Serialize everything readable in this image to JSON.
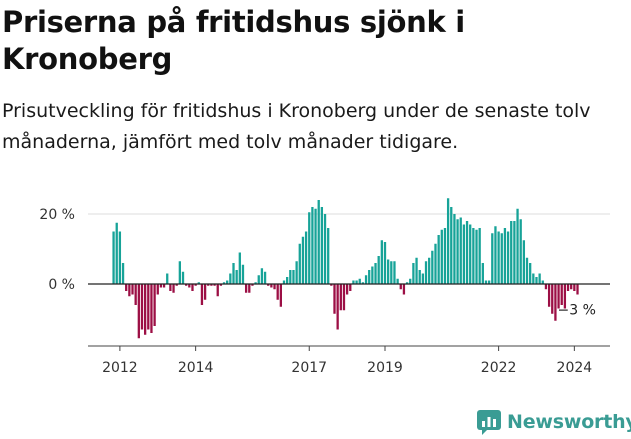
{
  "title": "Priserna på fritidshus sjönk i Kronoberg",
  "subtitle": "Prisutveckling för fritidshus i Kronoberg under de senaste tolv månaderna, jämfört med tolv månader tidigare.",
  "brand": "Newsworthy",
  "colors": {
    "positive": "#17a398",
    "negative": "#9c0f45",
    "grid": "#dddddd",
    "brand": "#3a9c94"
  },
  "chart_data": {
    "type": "bar",
    "start": "2011-11",
    "ylabel": "",
    "xlabel": "",
    "ylim": [
      -17,
      25
    ],
    "yticks": [
      {
        "value": 0,
        "label": "0 %"
      },
      {
        "value": 20,
        "label": "20 %"
      }
    ],
    "xticks": [
      {
        "label": "2012",
        "index": 2
      },
      {
        "label": "2014",
        "index": 26
      },
      {
        "label": "2017",
        "index": 62
      },
      {
        "label": "2019",
        "index": 86
      },
      {
        "label": "2022",
        "index": 122
      },
      {
        "label": "2024",
        "index": 146
      }
    ],
    "end_label": "−3 %",
    "values": [
      15,
      17.5,
      15,
      6,
      -2,
      -3.5,
      -3,
      -6,
      -15.5,
      -13,
      -14.5,
      -13,
      -14,
      -12,
      -3,
      -1,
      -1,
      3,
      -2,
      -2.5,
      -0.5,
      6.5,
      3.5,
      -0.5,
      -1,
      -2,
      -0.5,
      0.5,
      -6,
      -4.5,
      -0.5,
      -0.5,
      -0.5,
      -3.5,
      -0.5,
      0.5,
      1,
      3,
      6,
      4,
      9,
      5.5,
      -2.5,
      -2.5,
      -0.5,
      0.5,
      2.5,
      4.5,
      3.5,
      -0.5,
      -1,
      -1.5,
      -4.5,
      -6.5,
      1,
      2,
      4,
      4,
      6.5,
      11.5,
      13.5,
      15,
      20.5,
      22,
      21.5,
      24,
      22,
      20,
      16,
      -0.5,
      -8.5,
      -13,
      -7.5,
      -7.5,
      -3,
      -2,
      1,
      1,
      1.5,
      0.5,
      2.5,
      4,
      5,
      6,
      8,
      12.5,
      12,
      7,
      6.5,
      6.5,
      1.5,
      -1.5,
      -3,
      0.5,
      1.5,
      6,
      7.5,
      4,
      3,
      6.5,
      7.5,
      9.5,
      11.5,
      14,
      15.5,
      16,
      24.5,
      22,
      20,
      18.5,
      19,
      17,
      18,
      17,
      16,
      15.5,
      16,
      6,
      1,
      1,
      14.5,
      16.5,
      15,
      14.5,
      16,
      15,
      18,
      18,
      21.5,
      18.5,
      12.5,
      7.5,
      6,
      3,
      2,
      3,
      1,
      -1.5,
      -6.5,
      -8.5,
      -10.5,
      -7,
      -6,
      -7,
      -2,
      -1.5,
      -2,
      -3
    ]
  }
}
